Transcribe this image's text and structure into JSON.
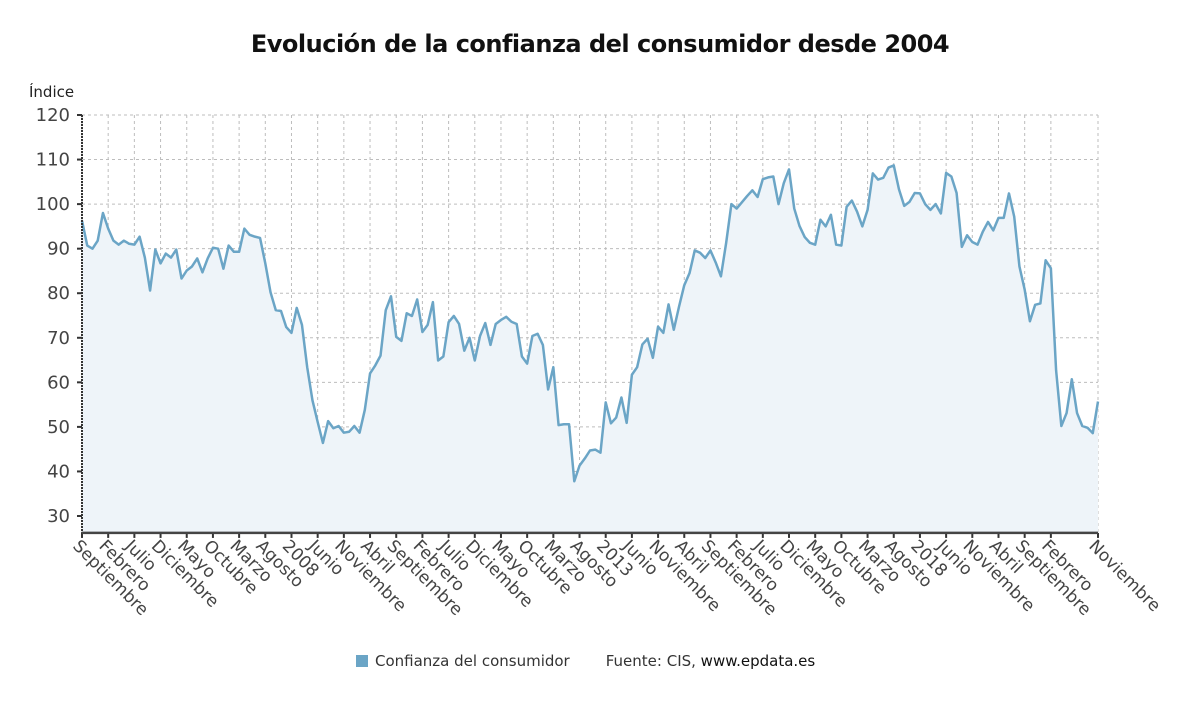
{
  "chart_data": {
    "type": "area",
    "title": "Evolución de la confianza del consumidor desde 2004",
    "ylabel": "Índice",
    "xlabel": "",
    "ylim": [
      26.2,
      120
    ],
    "yticks": [
      30,
      40,
      50,
      60,
      70,
      80,
      90,
      100,
      110,
      120
    ],
    "grid": true,
    "start_month": "Septiembre 2004",
    "end_month": "Noviembre 2020",
    "x_tick_every_months": 5,
    "x_tick_labels": [
      "Septiembre",
      "Febrero",
      "Julio",
      "Diciembre",
      "Mayo",
      "Octubre",
      "Marzo",
      "Agosto",
      "2008",
      "Junio",
      "Noviembre",
      "Abril",
      "Septiembre",
      "Febrero",
      "Julio",
      "Diciembre",
      "Mayo",
      "Octubre",
      "Marzo",
      "Agosto",
      "2013",
      "Junio",
      "Noviembre",
      "Abril",
      "Septiembre",
      "Febrero",
      "Julio",
      "Diciembre",
      "Mayo",
      "Octubre",
      "Marzo",
      "Agosto",
      "2018",
      "Junio",
      "Noviembre",
      "Abril",
      "Septiembre",
      "Febrero"
    ],
    "x_end_label": "Noviembre",
    "legend_position": "bottom",
    "series": [
      {
        "name": "Confianza del consumidor",
        "color": "#6ba5c6",
        "fill": "#eef4f9",
        "values": [
          96.3,
          90.7,
          90,
          91.8,
          98,
          94.5,
          91.8,
          90.9,
          91.8,
          91.1,
          90.9,
          92.7,
          88,
          80.6,
          89.8,
          86.7,
          88.9,
          88,
          89.8,
          83.3,
          85.1,
          86,
          87.8,
          84.7,
          87.8,
          90.2,
          90,
          85.5,
          90.7,
          89.3,
          89.3,
          94.5,
          93.1,
          92.7,
          92.4,
          86.7,
          80.2,
          76.2,
          76,
          72.4,
          71.1,
          76.7,
          72.9,
          63.4,
          56,
          51.1,
          46.4,
          51.3,
          49.7,
          50.2,
          48.7,
          48.9,
          50.2,
          48.7,
          53.8,
          62,
          63.8,
          66,
          76.2,
          79.3,
          70.2,
          69.3,
          75.5,
          74.9,
          78.6,
          71.3,
          72.9,
          78,
          64.9,
          65.8,
          73.5,
          74.9,
          73.1,
          67.1,
          70,
          64.9,
          70.4,
          73.3,
          68.4,
          73.1,
          74,
          74.7,
          73.6,
          73.1,
          65.8,
          64.2,
          70.4,
          70.9,
          68.4,
          58.4,
          63.4,
          50.4,
          50.6,
          50.6,
          37.8,
          41.3,
          42.9,
          44.7,
          44.9,
          44.2,
          55.5,
          50.8,
          52.1,
          56.6,
          50.9,
          61.7,
          63.4,
          68.5,
          69.8,
          65.5,
          72.5,
          71.1,
          77.5,
          71.8,
          77,
          81.8,
          84.5,
          89.6,
          89.1,
          87.9,
          89.6,
          86.9,
          83.8,
          91.3,
          100,
          99,
          100.4,
          101.8,
          103.1,
          101.6,
          105.6,
          106,
          106.2,
          100,
          104.7,
          107.8,
          99,
          95.1,
          92.6,
          91.3,
          90.9,
          96.5,
          95,
          97.6,
          90.9,
          90.7,
          99.4,
          100.8,
          98.3,
          95,
          98.7,
          106.9,
          105.5,
          105.9,
          108.2,
          108.7,
          103.3,
          99.6,
          100.5,
          102.5,
          102.4,
          100,
          98.7,
          100,
          97.9,
          107,
          106.2,
          102.5,
          90.4,
          93,
          91.5,
          90.9,
          93.8,
          96,
          94.1,
          96.9,
          96.9,
          102.4,
          97.2,
          86,
          80.8,
          73.7,
          77.4,
          77.7,
          87.4,
          85.6,
          62.7,
          50.2,
          53.1,
          60.7,
          53.1,
          50.2,
          49.8,
          48.6,
          55.7
        ]
      }
    ]
  },
  "legend": {
    "series_label": "Confianza del consumidor",
    "source_prefix": "Fuente: CIS, ",
    "source_site": "www.epdata.es"
  }
}
